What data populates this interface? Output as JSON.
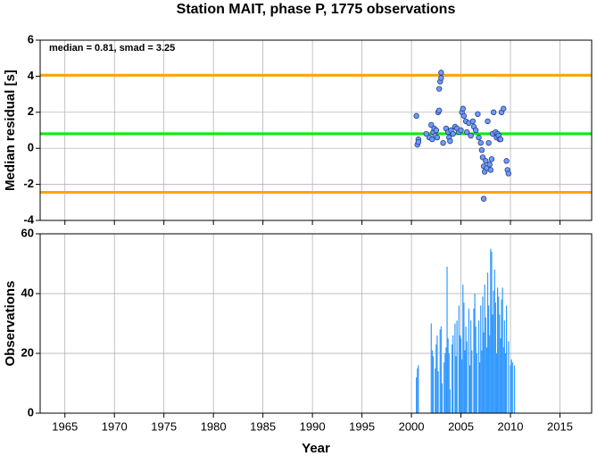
{
  "chart_data": [
    {
      "type": "scatter",
      "title": "Station MAIT, phase P, 1775 observations",
      "ylabel": "Median residual [s]",
      "annotation": "median = 0.81, smad = 3.25",
      "color": "#6c9cff",
      "grid": true,
      "xlim": [
        1962.5,
        2018.2
      ],
      "xticks": [
        1965,
        1970,
        1975,
        1980,
        1985,
        1990,
        1995,
        2000,
        2005,
        2010,
        2015
      ],
      "ylim": [
        -4,
        6
      ],
      "yticks": [
        -4,
        -2,
        0,
        2,
        4,
        6
      ],
      "hlines": [
        {
          "value": 4.06,
          "color": "#ffa500"
        },
        {
          "value": 0.81,
          "color": "#00ee00"
        },
        {
          "value": -2.44,
          "color": "#ffa500"
        }
      ],
      "x": [
        2000.5,
        2000.6,
        2000.7,
        2000.7,
        2001.5,
        2001.8,
        2002.0,
        2002.1,
        2002.2,
        2002.3,
        2002.4,
        2002.5,
        2002.6,
        2002.7,
        2002.8,
        2002.8,
        2002.9,
        2003.0,
        2003.0,
        2003.2,
        2003.5,
        2003.7,
        2003.8,
        2003.9,
        2004.0,
        2004.2,
        2004.4,
        2004.6,
        2004.8,
        2005.0,
        2005.1,
        2005.2,
        2005.3,
        2005.5,
        2005.6,
        2005.8,
        2006.0,
        2006.2,
        2006.3,
        2006.5,
        2006.7,
        2006.8,
        2007.0,
        2007.1,
        2007.2,
        2007.3,
        2007.3,
        2007.4,
        2007.5,
        2007.6,
        2007.7,
        2007.8,
        2007.9,
        2008.0,
        2008.1,
        2008.2,
        2008.3,
        2008.5,
        2008.6,
        2008.7,
        2008.8,
        2008.9,
        2009.0,
        2009.1,
        2009.3,
        2009.6,
        2009.7,
        2009.8
      ],
      "values": [
        1.8,
        0.2,
        0.5,
        0.35,
        0.8,
        0.6,
        1.3,
        0.5,
        0.9,
        1.1,
        0.7,
        1.0,
        0.6,
        2.0,
        2.1,
        3.3,
        3.7,
        3.9,
        4.2,
        0.3,
        1.1,
        0.9,
        0.6,
        0.4,
        1.0,
        0.8,
        1.2,
        1.1,
        0.9,
        1.0,
        2.0,
        2.2,
        1.8,
        1.5,
        0.9,
        1.4,
        0.7,
        1.5,
        1.2,
        1.0,
        1.9,
        0.6,
        0.3,
        -0.1,
        -0.5,
        -1.0,
        -2.8,
        -1.3,
        -0.7,
        -1.1,
        1.5,
        0.3,
        -0.9,
        -1.2,
        -0.6,
        0.8,
        2.0,
        0.9,
        0.6,
        0.8,
        0.7,
        0.5,
        0.5,
        2.0,
        2.2,
        -0.7,
        -1.2,
        -1.4
      ]
    },
    {
      "type": "bar",
      "ylabel": "Observations",
      "xlabel": "Year",
      "color": "#3399ff",
      "grid": true,
      "xlim": [
        1962.5,
        2018.2
      ],
      "xticks": [
        1965,
        1970,
        1975,
        1980,
        1985,
        1990,
        1995,
        2000,
        2005,
        2010,
        2015
      ],
      "ylim": [
        0,
        60
      ],
      "yticks": [
        0,
        20,
        40,
        60
      ],
      "x": [
        2000.5,
        2000.6,
        2000.7,
        2002.0,
        2002.1,
        2002.2,
        2002.4,
        2002.5,
        2002.6,
        2002.7,
        2002.9,
        2003.0,
        2003.1,
        2003.3,
        2003.4,
        2003.5,
        2003.6,
        2003.7,
        2003.8,
        2003.9,
        2004.1,
        2004.2,
        2004.4,
        2004.5,
        2004.6,
        2004.8,
        2004.9,
        2005.0,
        2005.1,
        2005.2,
        2005.3,
        2005.4,
        2005.5,
        2005.6,
        2005.8,
        2005.9,
        2006.0,
        2006.1,
        2006.3,
        2006.4,
        2006.5,
        2006.6,
        2006.8,
        2006.9,
        2007.0,
        2007.1,
        2007.2,
        2007.3,
        2007.4,
        2007.5,
        2007.6,
        2007.7,
        2007.8,
        2007.9,
        2008.0,
        2008.1,
        2008.2,
        2008.3,
        2008.4,
        2008.5,
        2008.6,
        2008.7,
        2008.8,
        2008.9,
        2009.0,
        2009.1,
        2009.2,
        2009.3,
        2009.4,
        2009.5,
        2009.6,
        2009.8,
        2010.0,
        2010.1,
        2010.2,
        2010.4
      ],
      "values": [
        12,
        15,
        16,
        30,
        21,
        19,
        15,
        23,
        26,
        14,
        28,
        29,
        10,
        17,
        20,
        22,
        49,
        25,
        20,
        8,
        23,
        26,
        30,
        19,
        31,
        36,
        26,
        25,
        18,
        43,
        37,
        21,
        29,
        24,
        35,
        16,
        31,
        21,
        35,
        40,
        29,
        20,
        31,
        17,
        36,
        21,
        39,
        27,
        43,
        32,
        22,
        47,
        36,
        26,
        55,
        54,
        33,
        41,
        48,
        37,
        20,
        42,
        39,
        33,
        25,
        38,
        42,
        22,
        31,
        20,
        36,
        24,
        16,
        18,
        17,
        16
      ]
    }
  ]
}
